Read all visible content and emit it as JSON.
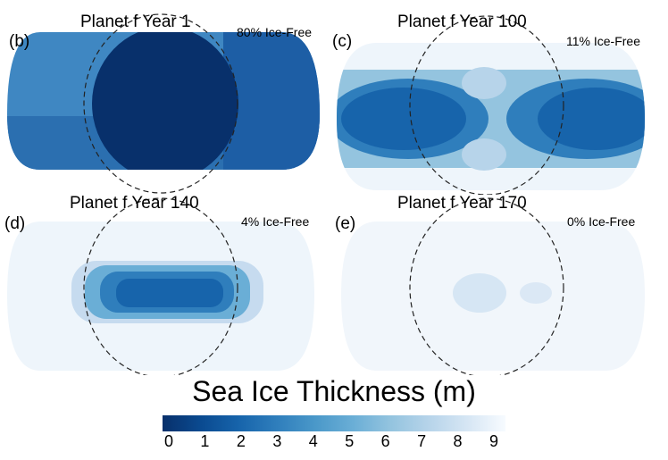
{
  "panels": [
    {
      "id": "b",
      "label": "(b)",
      "title": "Planet f Year 1",
      "ice_free": "80% Ice-Free"
    },
    {
      "id": "c",
      "label": "(c)",
      "title": "Planet f Year 100",
      "ice_free": "11% Ice-Free"
    },
    {
      "id": "d",
      "label": "(d)",
      "title": "Planet f Year 140",
      "ice_free": "4% Ice-Free"
    },
    {
      "id": "e",
      "label": "(e)",
      "title": "Planet f Year 170",
      "ice_free": "0% Ice-Free"
    }
  ],
  "colorbar": {
    "title": "Sea Ice Thickness (m)",
    "ticks": [
      "0",
      "1",
      "2",
      "3",
      "4",
      "5",
      "6",
      "7",
      "8",
      "9"
    ],
    "range": [
      0,
      9
    ]
  },
  "colors": {
    "min": "#08306b",
    "max": "#f7fbff",
    "dashed": "#222222"
  },
  "chart_data": {
    "type": "heatmap",
    "title": "Sea Ice Thickness (m)",
    "panels": [
      {
        "panel": "(b)",
        "year": 1,
        "ice_free_percent": 80
      },
      {
        "panel": "(c)",
        "year": 100,
        "ice_free_percent": 11
      },
      {
        "panel": "(d)",
        "year": 140,
        "ice_free_percent": 4
      },
      {
        "panel": "(e)",
        "year": 170,
        "ice_free_percent": 0
      }
    ],
    "colorbar_range": [
      0,
      9
    ],
    "colorbar_ticks": [
      0,
      1,
      2,
      3,
      4,
      5,
      6,
      7,
      8,
      9
    ]
  }
}
